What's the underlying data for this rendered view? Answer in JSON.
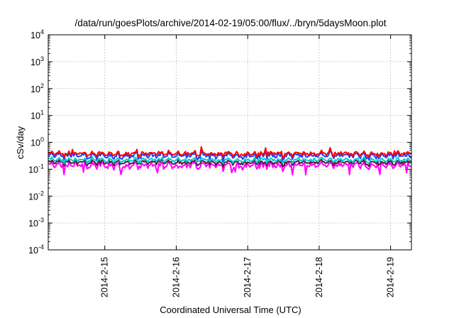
{
  "chart_data": {
    "type": "line",
    "title": "/data/run/goesPlots/archive/2014-02-19/05:00/flux/../bryn/5daysMoon.plot",
    "xlabel": "Coordinated Universal Time (UTC)",
    "ylabel": "cSv/day",
    "yscale": "log",
    "grid": true,
    "xlim": [
      "2014-02-14 05:00",
      "2014-02-19 07:00"
    ],
    "ylim": [
      0.0001,
      10000
    ],
    "x_ticks": [
      {
        "label": "2014-2-15",
        "value": "2014-02-15 00:00"
      },
      {
        "label": "2014-2-16",
        "value": "2014-02-16 00:00"
      },
      {
        "label": "2014-2-17",
        "value": "2014-02-17 00:00"
      },
      {
        "label": "2014-2-18",
        "value": "2014-02-18 00:00"
      },
      {
        "label": "2014-2-19",
        "value": "2014-02-19 00:00"
      }
    ],
    "y_ticks": [
      {
        "mant": "10",
        "exp": "4",
        "value": 10000
      },
      {
        "mant": "10",
        "exp": "3",
        "value": 1000
      },
      {
        "mant": "10",
        "exp": "2",
        "value": 100
      },
      {
        "mant": "10",
        "exp": "1",
        "value": 10
      },
      {
        "mant": "10",
        "exp": "0",
        "value": 1
      },
      {
        "mant": "10",
        "exp": "-1",
        "value": 0.1
      },
      {
        "mant": "10",
        "exp": "-2",
        "value": 0.01
      },
      {
        "mant": "10",
        "exp": "-3",
        "value": 0.001
      },
      {
        "mant": "10",
        "exp": "-4",
        "value": 0.0001
      }
    ],
    "series": [
      {
        "color": "#ff0000",
        "typical": 0.38,
        "spread": 0.12
      },
      {
        "color": "#1f3fff",
        "typical": 0.32,
        "spread": 0.14
      },
      {
        "color": "#00cccc",
        "typical": 0.22,
        "spread": 0.07
      },
      {
        "color": "#5a1a3a",
        "typical": 0.18,
        "spread": 0.06
      },
      {
        "color": "#ff00ff",
        "typical": 0.14,
        "spread": 0.07
      }
    ]
  }
}
